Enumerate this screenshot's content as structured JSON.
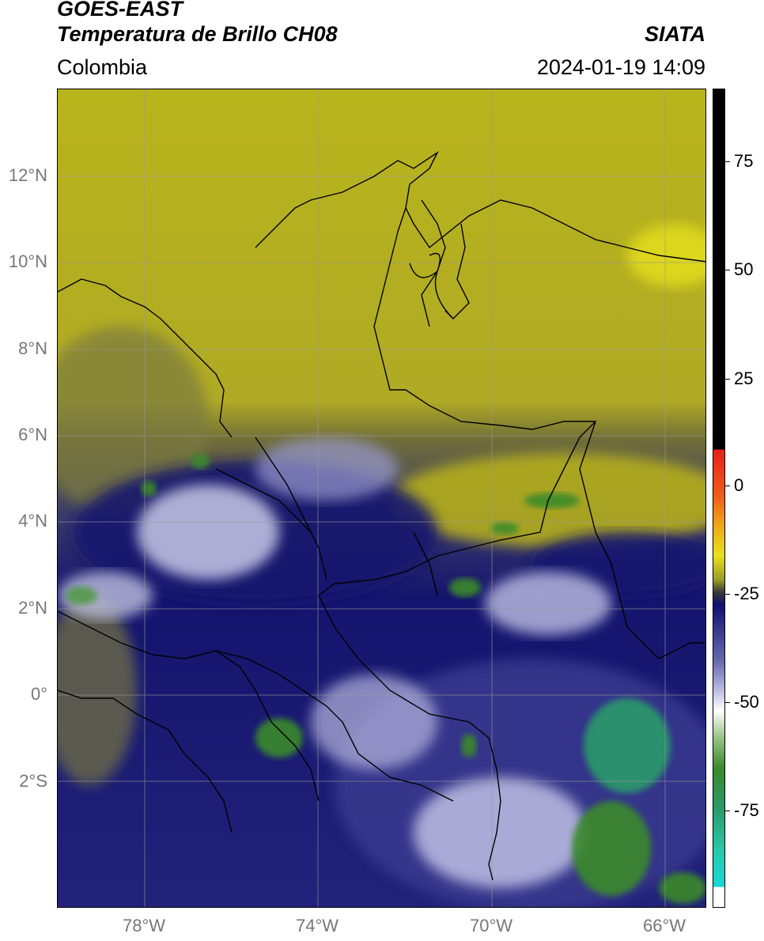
{
  "header": {
    "satellite": "GOES-EAST",
    "product": "Temperatura de Brillo CH08",
    "region": "Colombia",
    "agency": "SIATA",
    "datetime": "2024-01-19 14:09"
  },
  "axes": {
    "lat_labels": [
      "12°N",
      "10°N",
      "8°N",
      "6°N",
      "4°N",
      "2°N",
      "0°",
      "2°S"
    ],
    "lon_labels": [
      "78°W",
      "74°W",
      "70°W",
      "66°W"
    ]
  },
  "colorbar": {
    "ticks": [
      "75",
      "50",
      "25",
      "0",
      "-25",
      "-50",
      "-75"
    ],
    "colors": {
      "black": "#000000",
      "red": "#e8201a",
      "orange": "#f0901a",
      "yellow": "#e8e21a",
      "olive": "#9a9a2a",
      "dark": "#3a3a3a",
      "navy": "#101070",
      "lavender": "#a8a8d8",
      "white": "#ffffff",
      "green": "#3a8a2a",
      "teal": "#28c8a8",
      "cyan": "#18d8d8"
    }
  }
}
